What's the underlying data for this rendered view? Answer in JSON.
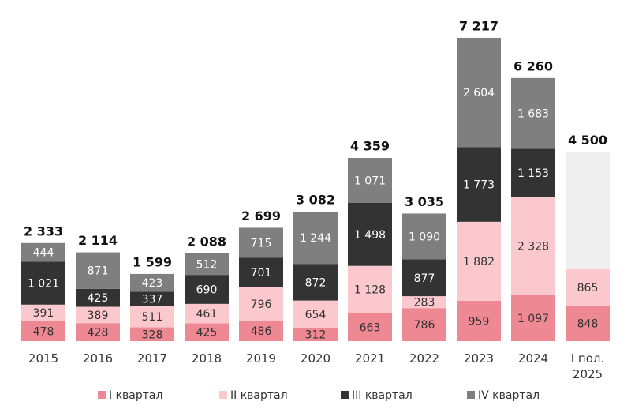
{
  "chart_data": {
    "type": "stacked-bar",
    "categories": [
      "2015",
      "2016",
      "2017",
      "2018",
      "2019",
      "2020",
      "2021",
      "2022",
      "2023",
      "2024",
      "I пол. 2025"
    ],
    "series": [
      {
        "name": "I квартал",
        "color": "#ee8893",
        "text_color": "#333333",
        "values": [
          478,
          428,
          328,
          425,
          486,
          312,
          663,
          786,
          959,
          1097,
          848
        ],
        "value_labels": [
          "478",
          "428",
          "328",
          "425",
          "486",
          "312",
          "663",
          "786",
          "959",
          "1 097",
          "848"
        ]
      },
      {
        "name": "II квартал",
        "color": "#fbc8ce",
        "text_color": "#333333",
        "values": [
          391,
          389,
          511,
          461,
          796,
          654,
          1128,
          283,
          1882,
          2328,
          865
        ],
        "value_labels": [
          "391",
          "389",
          "511",
          "461",
          "796",
          "654",
          "1 128",
          "283",
          "1 882",
          "2 328",
          "865"
        ]
      },
      {
        "name": "III квартал",
        "color": "#333333",
        "text_color": "#ffffff",
        "values": [
          1021,
          425,
          337,
          690,
          701,
          872,
          1498,
          877,
          1773,
          1153,
          null
        ],
        "value_labels": [
          "1 021",
          "425",
          "337",
          "690",
          "701",
          "872",
          "1 498",
          "877",
          "1 773",
          "1 153",
          null
        ]
      },
      {
        "name": "IV квартал",
        "color": "#7f7f7f",
        "text_color": "#ffffff",
        "values": [
          444,
          871,
          423,
          512,
          715,
          1244,
          1071,
          1090,
          2604,
          1683,
          null
        ],
        "value_labels": [
          "444",
          "871",
          "423",
          "512",
          "715",
          "1 244",
          "1 071",
          "1 090",
          "2 604",
          "1 683",
          null
        ]
      }
    ],
    "totals": {
      "values": [
        2333,
        2114,
        1599,
        2088,
        2699,
        3082,
        4359,
        3035,
        7217,
        6260,
        4500
      ],
      "value_labels": [
        "2 333",
        "2 114",
        "1 599",
        "2 088",
        "2 699",
        "3 082",
        "4 359",
        "3 035",
        "7 217",
        "6 260",
        "4 500"
      ],
      "remainder_color": "#efefef"
    },
    "legend": "bottom"
  }
}
